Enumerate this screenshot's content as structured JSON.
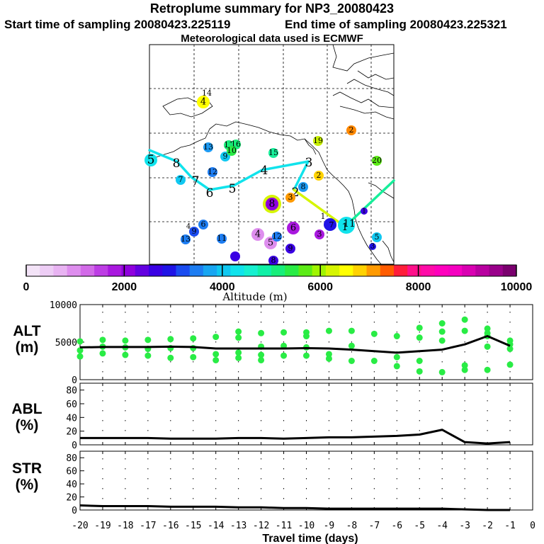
{
  "header": {
    "title": "Retroplume summary for NP3_20080423",
    "start": "Start time of sampling 20080423.225119",
    "end": "End time of sampling 20080423.225321",
    "met": "Meteorological data used is ECMWF"
  },
  "colorbar": {
    "label": "Altitude (m)",
    "ticks": [
      "0",
      "2000",
      "4000",
      "6000",
      "8000",
      "10000"
    ],
    "colors": [
      "#f3e3f7",
      "#edcdf5",
      "#e8b3f2",
      "#de8eee",
      "#d26ae8",
      "#bd3de4",
      "#a918df",
      "#8f00dd",
      "#6300e0",
      "#3a00e3",
      "#1f13e6",
      "#1a4cf0",
      "#1d7df2",
      "#18a6f2",
      "#10c8f1",
      "#10e3ec",
      "#16f0d0",
      "#10f0a6",
      "#17ee7a",
      "#29ec45",
      "#5ceb16",
      "#9ff500",
      "#d6f500",
      "#ffff00",
      "#ffd200",
      "#ff9a00",
      "#ff5c00",
      "#ff1d3a",
      "#ff0f8a",
      "#ff0ba8",
      "#ff00bd",
      "#f500c0",
      "#d900b2",
      "#b800a0",
      "#99008a",
      "#7a006e"
    ]
  },
  "map_markers": [
    {
      "label": "14",
      "color": "#000000",
      "size": 9
    },
    {
      "label": "4",
      "color": "#ffff00",
      "size": 11
    },
    {
      "label": "2",
      "color": "#ff8800",
      "size": 9
    },
    {
      "label": "19",
      "color": "#c8f000",
      "size": 9
    },
    {
      "label": "13",
      "color": "#1d9af2",
      "size": 9
    },
    {
      "label": "11",
      "color": "#17ee7a",
      "size": 9
    },
    {
      "label": "16",
      "color": "#17ee7a",
      "size": 9
    },
    {
      "label": "9",
      "color": "#10c8f1",
      "size": 9
    },
    {
      "label": "10",
      "color": "#29ec45",
      "size": 9
    },
    {
      "label": "15",
      "color": "#17ee9a",
      "size": 9
    },
    {
      "label": "20",
      "color": "#5ceb16",
      "size": 9
    },
    {
      "label": "5",
      "color": "#10e3ec",
      "size": 15
    },
    {
      "label": "8",
      "color": "#000000",
      "size": 15
    },
    {
      "label": "12",
      "color": "#1d7df2",
      "size": 9
    },
    {
      "label": "7",
      "color": "#10c8f1",
      "size": 9
    },
    {
      "label": "7",
      "color": "#000000",
      "size": 15
    },
    {
      "label": "4",
      "color": "#000000",
      "size": 15
    },
    {
      "label": "3",
      "color": "#000000",
      "size": 15
    },
    {
      "label": "2",
      "color": "#ffd200",
      "size": 9
    },
    {
      "label": "6",
      "color": "#000000",
      "size": 15
    },
    {
      "label": "5",
      "color": "#000000",
      "size": 15
    },
    {
      "label": "8",
      "color": "#1d9af2",
      "size": 9
    },
    {
      "label": "2",
      "color": "#000000",
      "size": 15
    },
    {
      "label": "8",
      "color": "#8f00dd",
      "size": 12
    },
    {
      "label": "3",
      "color": "#ff9a00",
      "size": 9
    },
    {
      "label": "1",
      "color": "#000000",
      "size": 9
    },
    {
      "label": "7",
      "color": "#1f13e6",
      "size": 9
    },
    {
      "label": "11",
      "color": "#000000",
      "size": 12
    },
    {
      "label": "1",
      "color": "#000000",
      "size": 12
    },
    {
      "label": "4",
      "color": "#000000",
      "size": 8
    },
    {
      "label": "6",
      "color": "#1d7df2",
      "size": 9
    },
    {
      "label": "9",
      "color": "#1a4cf0",
      "size": 9
    },
    {
      "label": "13",
      "color": "#1d7df2",
      "size": 9
    },
    {
      "label": "11",
      "color": "#1d7df2",
      "size": 9
    },
    {
      "label": "4",
      "color": "#de8eee",
      "size": 11
    },
    {
      "label": "5",
      "color": "#de8eee",
      "size": 11
    },
    {
      "label": "12",
      "color": "#1d7df2",
      "size": 9
    },
    {
      "label": "6",
      "color": "#a918df",
      "size": 11
    },
    {
      "label": "9",
      "color": "#3a00e3",
      "size": 9
    },
    {
      "label": "3",
      "color": "#a918df",
      "size": 9
    },
    {
      "label": "5",
      "color": "#10c8f1",
      "size": 9
    },
    {
      "label": "3",
      "color": "#1f13e6",
      "size": 8
    },
    {
      "label": "8",
      "color": "#3a00e3",
      "size": 9
    },
    {
      "label": "1",
      "color": "#3a00e3",
      "size": 7
    }
  ],
  "chart_data": [
    {
      "type": "line",
      "panel": "altitude",
      "label_line1": "ALT",
      "label_line2": "(m)",
      "ylim": [
        0,
        10000
      ],
      "yticks": [
        "0",
        "5000",
        "10000"
      ],
      "x": [
        -20,
        -19,
        -18,
        -17,
        -16,
        -15,
        -14,
        -13,
        -12,
        -11,
        -10,
        -9,
        -8,
        -7,
        -6,
        -5,
        -4,
        -3,
        -2,
        -1
      ],
      "values": [
        4300,
        4350,
        4350,
        4350,
        4400,
        4350,
        4150,
        4150,
        4150,
        4150,
        4200,
        4150,
        4000,
        3800,
        3600,
        3800,
        4000,
        4700,
        5800,
        4500
      ],
      "scatter": [
        {
          "x": -20,
          "y": 5100
        },
        {
          "x": -20,
          "y": 3900
        },
        {
          "x": -20,
          "y": 3100
        },
        {
          "x": -19,
          "y": 5300
        },
        {
          "x": -19,
          "y": 4400
        },
        {
          "x": -19,
          "y": 3500
        },
        {
          "x": -18,
          "y": 5200
        },
        {
          "x": -18,
          "y": 4300
        },
        {
          "x": -18,
          "y": 3300
        },
        {
          "x": -17,
          "y": 5300
        },
        {
          "x": -17,
          "y": 4100
        },
        {
          "x": -17,
          "y": 3200
        },
        {
          "x": -16,
          "y": 5400
        },
        {
          "x": -16,
          "y": 4200
        },
        {
          "x": -16,
          "y": 2900
        },
        {
          "x": -15,
          "y": 5500
        },
        {
          "x": -15,
          "y": 4200
        },
        {
          "x": -15,
          "y": 3000
        },
        {
          "x": -14,
          "y": 5700
        },
        {
          "x": -14,
          "y": 3400
        },
        {
          "x": -14,
          "y": 2600
        },
        {
          "x": -13,
          "y": 6400
        },
        {
          "x": -13,
          "y": 5600
        },
        {
          "x": -13,
          "y": 3600
        },
        {
          "x": -13,
          "y": 2900
        },
        {
          "x": -12,
          "y": 6200
        },
        {
          "x": -12,
          "y": 4400
        },
        {
          "x": -12,
          "y": 3300
        },
        {
          "x": -12,
          "y": 2600
        },
        {
          "x": -11,
          "y": 6300
        },
        {
          "x": -11,
          "y": 4500
        },
        {
          "x": -11,
          "y": 3200
        },
        {
          "x": -10,
          "y": 6300
        },
        {
          "x": -10,
          "y": 5800
        },
        {
          "x": -10,
          "y": 4300
        },
        {
          "x": -10,
          "y": 3200
        },
        {
          "x": -9,
          "y": 6500
        },
        {
          "x": -9,
          "y": 3400
        },
        {
          "x": -9,
          "y": 2800
        },
        {
          "x": -8,
          "y": 6500
        },
        {
          "x": -8,
          "y": 4500
        },
        {
          "x": -8,
          "y": 2500
        },
        {
          "x": -7,
          "y": 6100
        },
        {
          "x": -7,
          "y": 2500
        },
        {
          "x": -6,
          "y": 5800
        },
        {
          "x": -6,
          "y": 3000
        },
        {
          "x": -6,
          "y": 1800
        },
        {
          "x": -5,
          "y": 6900
        },
        {
          "x": -5,
          "y": 5600
        },
        {
          "x": -5,
          "y": 2500
        },
        {
          "x": -5,
          "y": 1100
        },
        {
          "x": -4,
          "y": 7500
        },
        {
          "x": -4,
          "y": 6400
        },
        {
          "x": -4,
          "y": 5200
        },
        {
          "x": -4,
          "y": 1000
        },
        {
          "x": -3,
          "y": 8000
        },
        {
          "x": -3,
          "y": 6500
        },
        {
          "x": -3,
          "y": 1900
        },
        {
          "x": -3,
          "y": 1300
        },
        {
          "x": -2,
          "y": 6800
        },
        {
          "x": -2,
          "y": 6200
        },
        {
          "x": -2,
          "y": 5800
        },
        {
          "x": -2,
          "y": 4400
        },
        {
          "x": -2,
          "y": 1300
        },
        {
          "x": -1,
          "y": 5200
        },
        {
          "x": -1,
          "y": 4700
        },
        {
          "x": -1,
          "y": 4100
        },
        {
          "x": -1,
          "y": 2000
        }
      ]
    },
    {
      "type": "line",
      "panel": "abl",
      "label_line1": "ABL",
      "label_line2": "(%)",
      "ylim": [
        0,
        90
      ],
      "yticks": [
        "0",
        "20",
        "40",
        "60",
        "80"
      ],
      "x": [
        -20,
        -19,
        -18,
        -17,
        -16,
        -15,
        -14,
        -13,
        -12,
        -11,
        -10,
        -9,
        -8,
        -7,
        -6,
        -5,
        -4,
        -3,
        -2,
        -1
      ],
      "values": [
        10,
        10,
        10,
        10,
        9,
        9,
        9,
        10,
        10,
        9,
        10,
        11,
        11,
        12,
        13,
        15,
        22,
        4,
        2,
        4
      ]
    },
    {
      "type": "line",
      "panel": "str",
      "label_line1": "STR",
      "label_line2": "(%)",
      "ylim": [
        0,
        90
      ],
      "yticks": [
        "0",
        "20",
        "40",
        "60",
        "80"
      ],
      "x": [
        -20,
        -19,
        -18,
        -17,
        -16,
        -15,
        -14,
        -13,
        -12,
        -11,
        -10,
        -9,
        -8,
        -7,
        -6,
        -5,
        -4,
        -3,
        -2,
        -1
      ],
      "values": [
        7,
        6,
        6,
        6,
        5,
        5,
        5,
        4,
        4,
        3,
        3,
        2,
        2,
        2,
        2,
        2,
        2,
        1,
        0,
        0
      ]
    }
  ],
  "xaxis": {
    "ticks": [
      "-20",
      "-19",
      "-18",
      "-17",
      "-16",
      "-15",
      "-14",
      "-13",
      "-12",
      "-11",
      "-10",
      "-9",
      "-8",
      "-7",
      "-6",
      "-5",
      "-4",
      "-3",
      "-2",
      "-1",
      "0"
    ],
    "label": "Travel time (days)"
  }
}
